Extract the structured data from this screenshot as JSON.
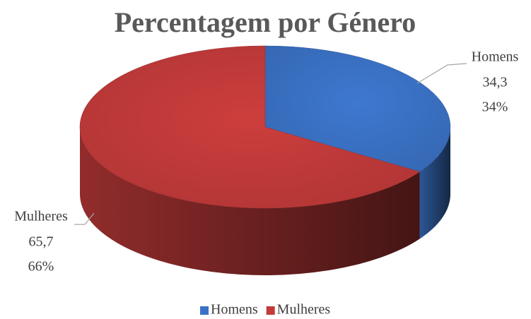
{
  "chart_data": {
    "type": "pie",
    "title": "Percentagem por Género",
    "categories": [
      "Homens",
      "Mulheres"
    ],
    "values": [
      34.3,
      65.7
    ],
    "value_labels": [
      "34,3",
      "65,7"
    ],
    "percent_labels": [
      "34%",
      "66%"
    ],
    "colors": [
      "#3b72c6",
      "#c23b3a"
    ],
    "legend": "bottom"
  }
}
